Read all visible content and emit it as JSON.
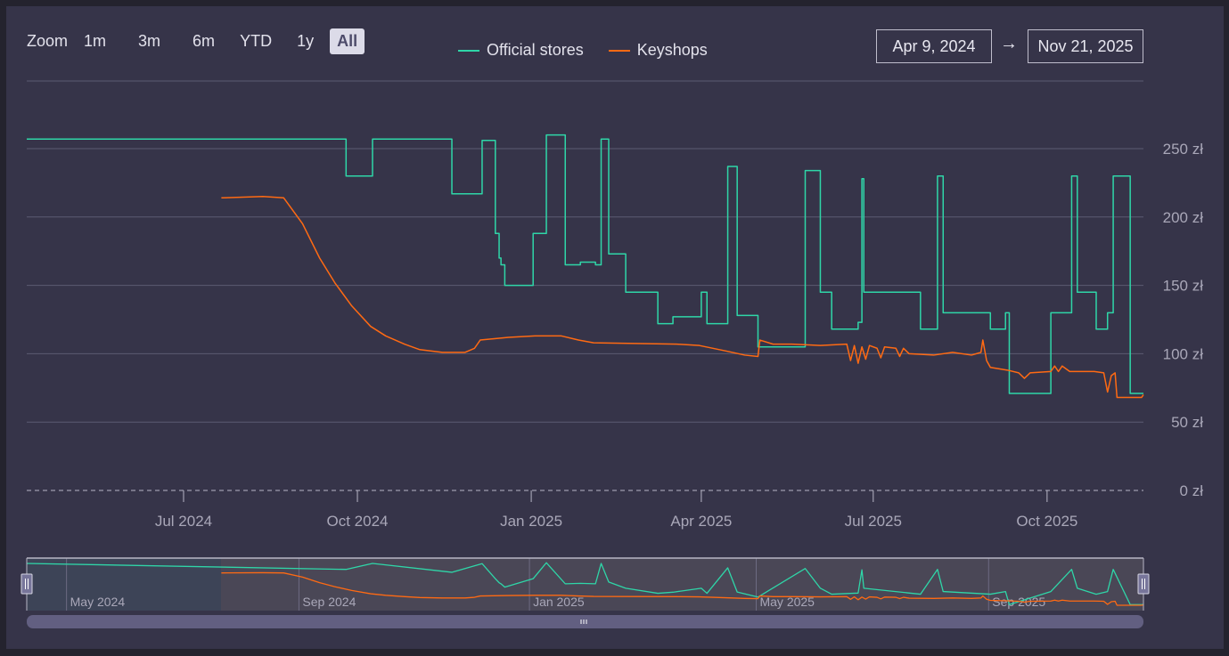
{
  "zoom": {
    "label": "Zoom",
    "buttons": [
      "1m",
      "3m",
      "6m",
      "YTD",
      "1y",
      "All"
    ],
    "active": "All"
  },
  "legend": [
    {
      "name": "Official stores",
      "color": "#2fd6a8"
    },
    {
      "name": "Keyshops",
      "color": "#ff6a13"
    }
  ],
  "range": {
    "from": "Apr 9, 2024",
    "arrow": "→",
    "to": "Nov 21, 2025"
  },
  "chart_data": {
    "type": "line",
    "x_unit": "days since Apr 9, 2024",
    "x_range": [
      0,
      591
    ],
    "ylim": [
      0,
      300
    ],
    "y_ticks": [
      {
        "v": 0,
        "label": "0 zł"
      },
      {
        "v": 50,
        "label": "50 zł"
      },
      {
        "v": 100,
        "label": "100 zł"
      },
      {
        "v": 150,
        "label": "150 zł"
      },
      {
        "v": 200,
        "label": "200 zł"
      },
      {
        "v": 250,
        "label": "250 zł"
      }
    ],
    "x_ticks": [
      {
        "d": 83,
        "label": "Jul 2024"
      },
      {
        "d": 175,
        "label": "Oct 2024"
      },
      {
        "d": 267,
        "label": "Jan 2025"
      },
      {
        "d": 357,
        "label": "Apr 2025"
      },
      {
        "d": 448,
        "label": "Jul 2025"
      },
      {
        "d": 540,
        "label": "Oct 2025"
      }
    ],
    "grid": true,
    "legend_position": "top-center",
    "series": [
      {
        "name": "Official stores",
        "step": true,
        "points": [
          [
            0,
            257
          ],
          [
            169,
            230
          ],
          [
            183,
            257
          ],
          [
            225,
            217
          ],
          [
            241,
            256
          ],
          [
            248,
            188
          ],
          [
            250,
            170
          ],
          [
            251,
            165
          ],
          [
            253,
            150
          ],
          [
            268,
            188
          ],
          [
            275,
            260
          ],
          [
            285,
            165
          ],
          [
            293,
            167
          ],
          [
            301,
            165
          ],
          [
            304,
            257
          ],
          [
            308,
            173
          ],
          [
            317,
            145
          ],
          [
            334,
            122
          ],
          [
            342,
            127
          ],
          [
            357,
            145
          ],
          [
            360,
            122
          ],
          [
            371,
            237
          ],
          [
            376,
            128
          ],
          [
            387,
            105
          ],
          [
            412,
            234
          ],
          [
            420,
            145
          ],
          [
            426,
            118
          ],
          [
            440,
            123
          ],
          [
            442,
            228
          ],
          [
            443,
            145
          ],
          [
            473,
            118
          ],
          [
            482,
            230
          ],
          [
            485,
            130
          ],
          [
            510,
            118
          ],
          [
            518,
            130
          ],
          [
            520,
            71
          ],
          [
            542,
            130
          ],
          [
            553,
            230
          ],
          [
            556,
            145
          ],
          [
            566,
            118
          ],
          [
            572,
            130
          ],
          [
            575,
            230
          ],
          [
            584,
            71
          ],
          [
            591,
            71
          ]
        ]
      },
      {
        "name": "Keyshops",
        "step": false,
        "points": [
          [
            103,
            214
          ],
          [
            125,
            215
          ],
          [
            136,
            214
          ],
          [
            146,
            195
          ],
          [
            155,
            170
          ],
          [
            163,
            152
          ],
          [
            172,
            135
          ],
          [
            182,
            120
          ],
          [
            190,
            113
          ],
          [
            200,
            107
          ],
          [
            208,
            103
          ],
          [
            220,
            101
          ],
          [
            232,
            101
          ],
          [
            237,
            104
          ],
          [
            240,
            110
          ],
          [
            255,
            112
          ],
          [
            269,
            113
          ],
          [
            283,
            113
          ],
          [
            292,
            110
          ],
          [
            300,
            108
          ],
          [
            344,
            107
          ],
          [
            356,
            106
          ],
          [
            370,
            102
          ],
          [
            380,
            99
          ],
          [
            387,
            98
          ],
          [
            388,
            110
          ],
          [
            395,
            107
          ],
          [
            405,
            107
          ],
          [
            420,
            106
          ],
          [
            434,
            107
          ],
          [
            436,
            95
          ],
          [
            438,
            106
          ],
          [
            440,
            93
          ],
          [
            442,
            105
          ],
          [
            444,
            96
          ],
          [
            446,
            106
          ],
          [
            450,
            104
          ],
          [
            452,
            97
          ],
          [
            454,
            105
          ],
          [
            460,
            104
          ],
          [
            462,
            98
          ],
          [
            464,
            104
          ],
          [
            467,
            100
          ],
          [
            480,
            99
          ],
          [
            490,
            101
          ],
          [
            500,
            99
          ],
          [
            505,
            101
          ],
          [
            506,
            110
          ],
          [
            508,
            95
          ],
          [
            510,
            90
          ],
          [
            519,
            88
          ],
          [
            525,
            86
          ],
          [
            528,
            82
          ],
          [
            531,
            86
          ],
          [
            542,
            87
          ],
          [
            544,
            91
          ],
          [
            546,
            87
          ],
          [
            548,
            91
          ],
          [
            552,
            87
          ],
          [
            565,
            87
          ],
          [
            570,
            86
          ],
          [
            572,
            72
          ],
          [
            574,
            84
          ],
          [
            576,
            86
          ],
          [
            577,
            68
          ],
          [
            585,
            68
          ],
          [
            590,
            68
          ],
          [
            591,
            70
          ]
        ]
      }
    ],
    "navigator": {
      "x_ticks": [
        {
          "d": 22,
          "label": "May 2024"
        },
        {
          "d": 145,
          "label": "Sep 2024"
        },
        {
          "d": 267,
          "label": "Jan 2025"
        },
        {
          "d": 387,
          "label": "May 2025"
        },
        {
          "d": 510,
          "label": "Sep 2025"
        }
      ]
    }
  }
}
